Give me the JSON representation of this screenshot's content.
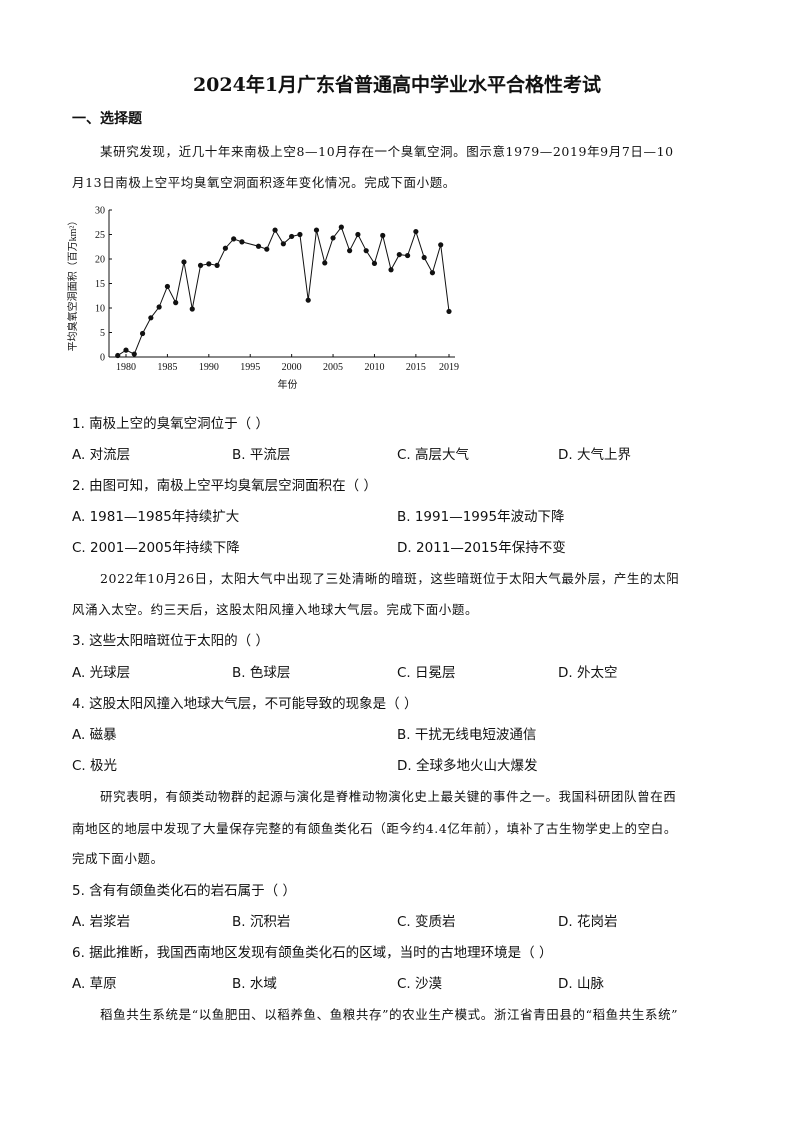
{
  "title": "2024年1月广东省普通高中学业水平合格性考试",
  "section": "一、选择题",
  "passage1": [
    "某研究发现，近几十年来南极上空8—10月存在一个臭氧空洞。图示意1979—2019年9月7日—10",
    "月13日南极上空平均臭氧空洞面积逐年变化情况。完成下面小题。"
  ],
  "chart_data": {
    "type": "line",
    "xlabel": "年份",
    "ylabel": "平均臭氧空洞面积（百万km²）",
    "ylim": [
      0,
      30
    ],
    "xlim": [
      1979,
      2019
    ],
    "yticks": [
      "0",
      "5",
      "10",
      "15",
      "20",
      "25",
      "30"
    ],
    "xticks": [
      "1980",
      "1985",
      "1990",
      "1995",
      "2000",
      "2005",
      "2010",
      "2015",
      "2019"
    ],
    "grid": false,
    "x": [
      1979,
      1980,
      1981,
      1982,
      1983,
      1984,
      1985,
      1986,
      1987,
      1988,
      1989,
      1990,
      1991,
      1992,
      1993,
      1994,
      1996,
      1997,
      1998,
      1999,
      2000,
      2001,
      2002,
      2003,
      2004,
      2005,
      2006,
      2007,
      2008,
      2009,
      2010,
      2011,
      2012,
      2013,
      2014,
      2015,
      2016,
      2017,
      2018,
      2019
    ],
    "y": [
      0.3,
      1.4,
      0.6,
      4.8,
      8.0,
      10.2,
      14.4,
      11.1,
      19.4,
      9.8,
      18.7,
      19.0,
      18.7,
      22.2,
      24.1,
      23.5,
      22.6,
      22.0,
      25.9,
      23.1,
      24.6,
      25.0,
      11.6,
      25.9,
      19.2,
      24.3,
      26.5,
      21.7,
      25.0,
      21.7,
      19.1,
      24.8,
      17.8,
      20.9,
      20.7,
      25.6,
      20.3,
      17.2,
      22.9,
      9.3
    ]
  },
  "q1": {
    "stem": "1. 南极上空的臭氧空洞位于（    ）",
    "options": [
      "A.  对流层",
      "B.  平流层",
      "C.  高层大气",
      "D.  大气上界"
    ]
  },
  "q2": {
    "stem": "2. 由图可知，南极上空平均臭氧层空洞面积在（    ）",
    "options": [
      "A. 1981—1985年持续扩大",
      "B. 1991—1995年波动下降",
      "C. 2001—2005年持续下降",
      "D. 2011—2015年保持不变"
    ]
  },
  "passage2": [
    "2022年10月26日，太阳大气中出现了三处清晰的暗斑，这些暗斑位于太阳大气最外层，产生的太阳",
    "风涌入太空。约三天后，这股太阳风撞入地球大气层。完成下面小题。"
  ],
  "q3": {
    "stem": "3. 这些太阳暗斑位于太阳的（    ）",
    "options": [
      "A.  光球层",
      "B.  色球层",
      "C.  日冕层",
      "D.  外太空"
    ]
  },
  "q4": {
    "stem": "4. 这股太阳风撞入地球大气层，不可能导致的现象是（    ）",
    "options": [
      "A.  磁暴",
      "B.  干扰无线电短波通信",
      "C.  极光",
      "D.  全球多地火山大爆发"
    ]
  },
  "passage3": [
    "研究表明，有颌类动物群的起源与演化是脊椎动物演化史上最关键的事件之一。我国科研团队曾在西",
    "南地区的地层中发现了大量保存完整的有颌鱼类化石（距今约4.4亿年前），填补了古生物学史上的空白。",
    "完成下面小题。"
  ],
  "q5": {
    "stem": "5. 含有有颌鱼类化石的岩石属于（    ）",
    "options": [
      "A.  岩浆岩",
      "B.  沉积岩",
      "C.  变质岩",
      "D.  花岗岩"
    ]
  },
  "q6": {
    "stem": "6. 据此推断，我国西南地区发现有颌鱼类化石的区域，当时的古地理环境是（    ）",
    "options": [
      "A.  草原",
      "B.  水域",
      "C.  沙漠",
      "D.  山脉"
    ]
  },
  "passage4": [
    "稻鱼共生系统是“以鱼肥田、以稻养鱼、鱼粮共存”的农业生产模式。浙江省青田县的“稻鱼共生系统”"
  ]
}
